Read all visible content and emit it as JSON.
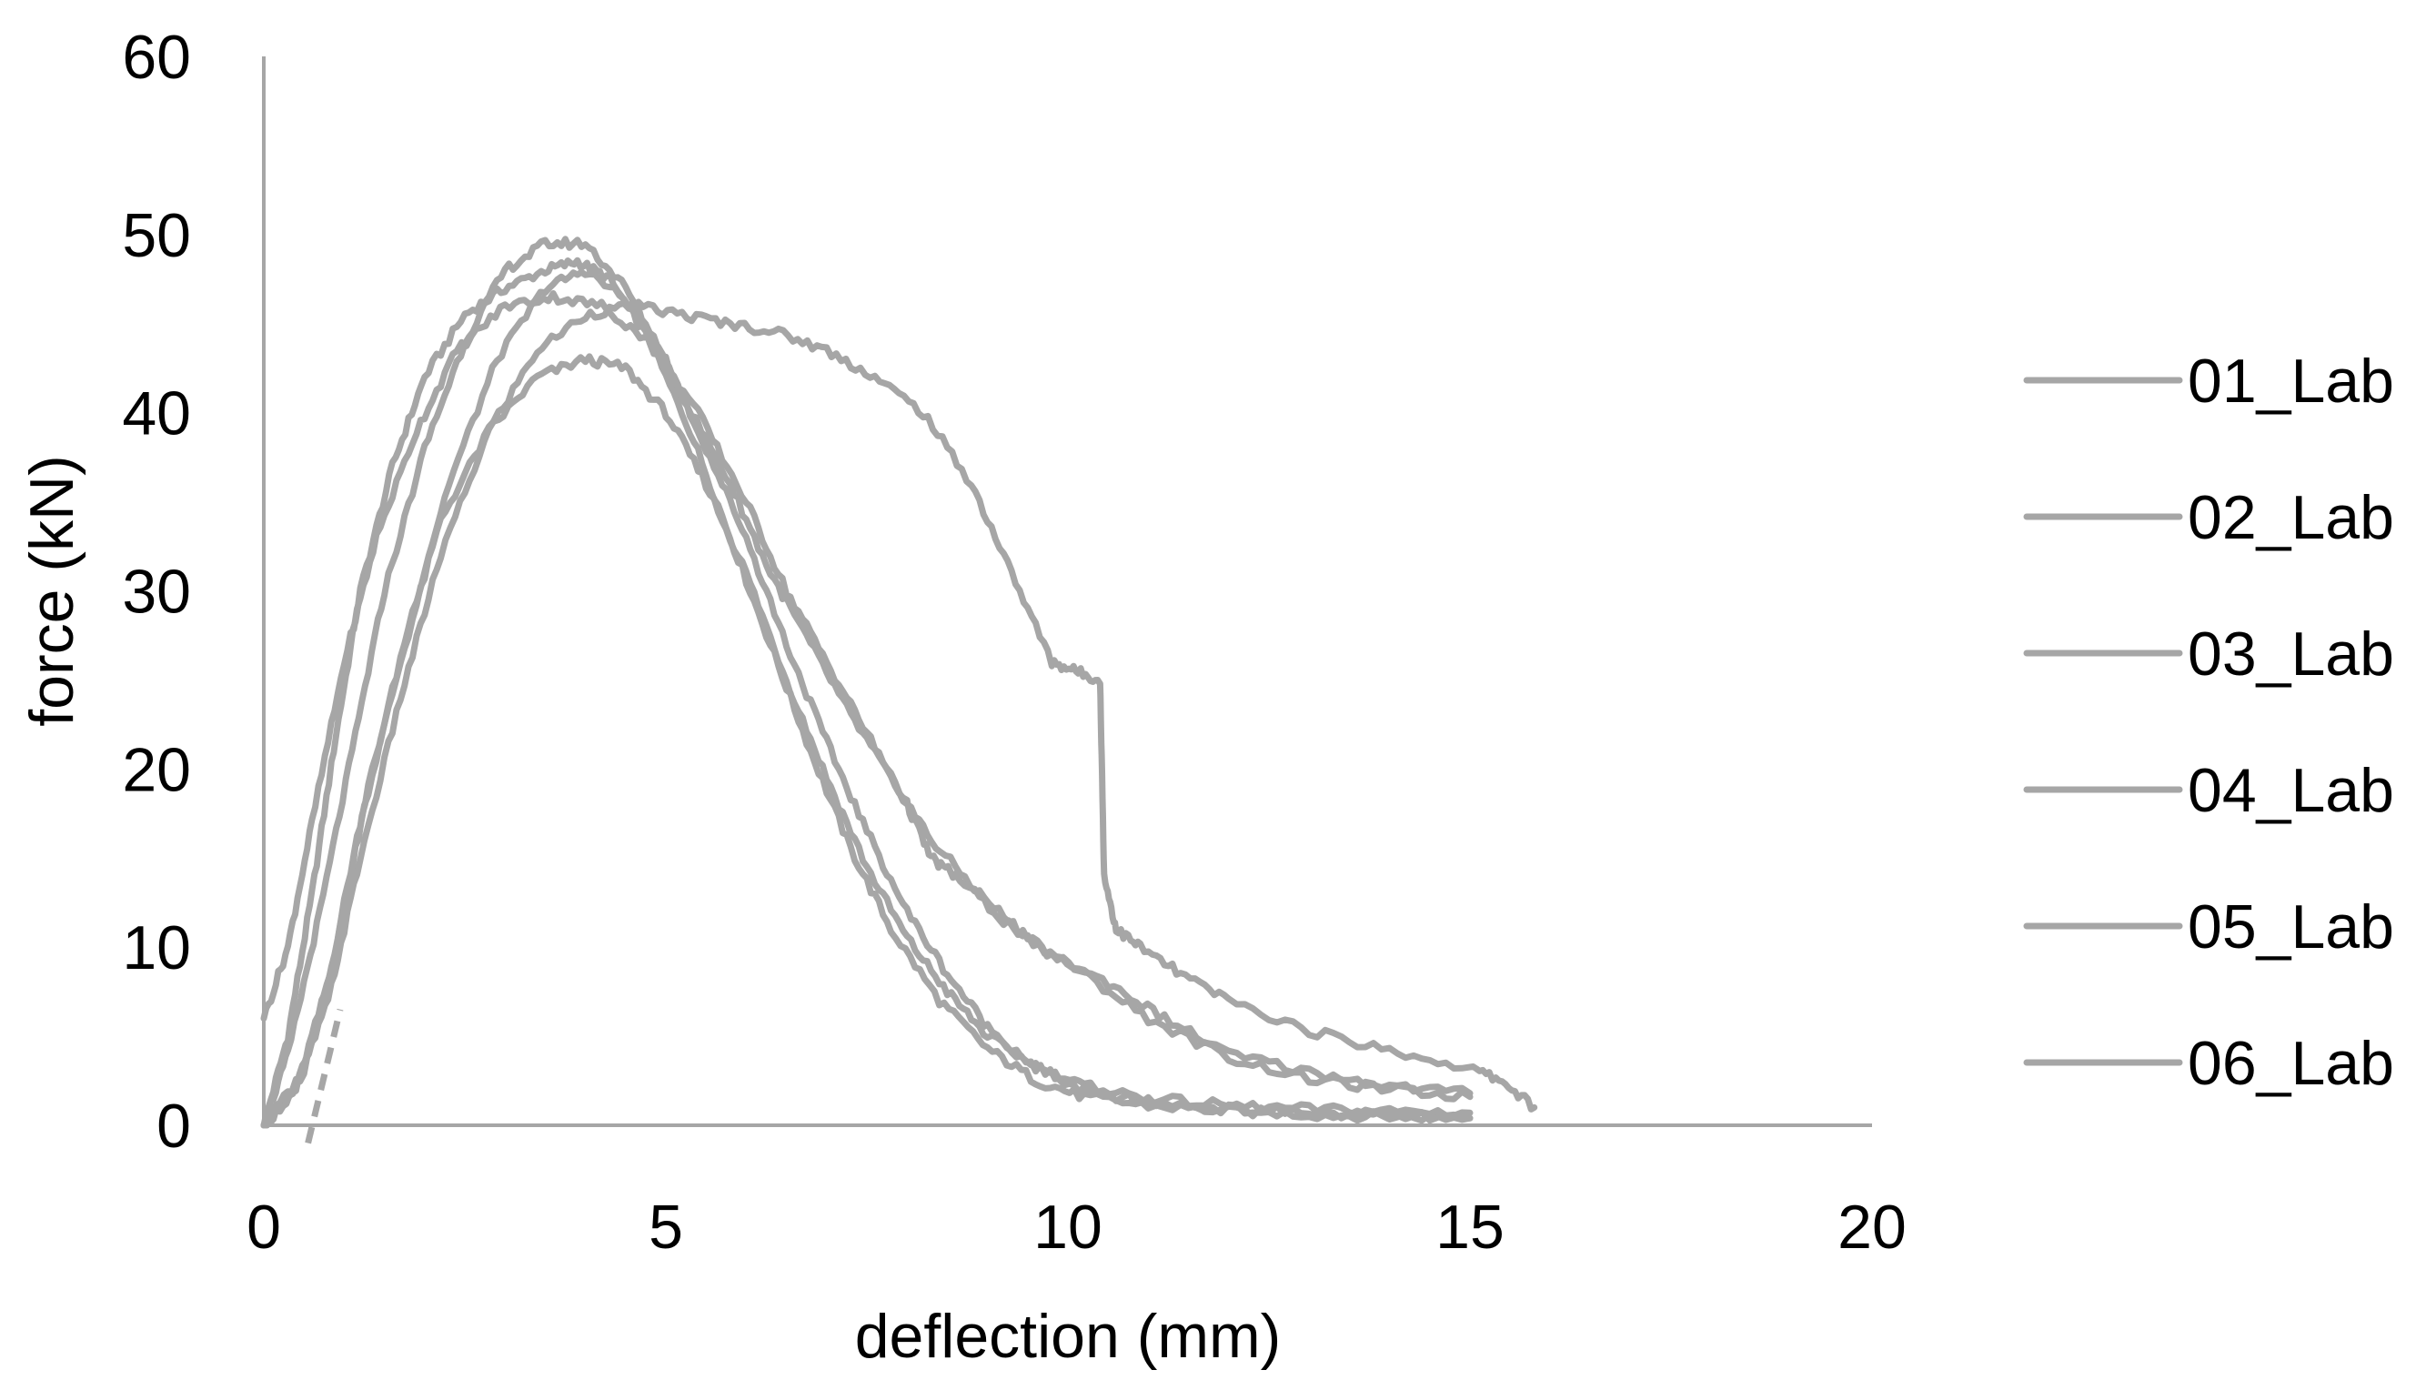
{
  "chart_data": {
    "type": "line",
    "title": "",
    "xlabel": "deflection (mm)",
    "ylabel": "force (kN)",
    "xlim": [
      0,
      20
    ],
    "ylim": [
      0,
      60
    ],
    "x_ticks": [
      "0",
      "5",
      "10",
      "15",
      "20"
    ],
    "y_ticks": [
      "0",
      "10",
      "20",
      "30",
      "40",
      "50",
      "60"
    ],
    "grid": false,
    "legend_position": "right",
    "line_color": "#a6a6a6",
    "series": [
      {
        "name": "01_Lab",
        "x": [
          0,
          0.3,
          0.6,
          0.9,
          1.2,
          1.6,
          2.0,
          2.5,
          3.0,
          3.5,
          3.9,
          4.3,
          4.8,
          5.3,
          5.8,
          6.3,
          6.8,
          7.3,
          7.8,
          8.4,
          9.0,
          9.6,
          10.2,
          11.0,
          12.0,
          13.0,
          14.0,
          15.0
        ],
        "y": [
          0,
          5,
          13,
          22,
          30,
          37,
          42,
          45.5,
          47,
          48,
          48.5,
          47.5,
          44,
          39,
          33,
          27,
          21,
          15.5,
          11,
          7,
          4.3,
          2.5,
          1.6,
          1.1,
          0.8,
          0.6,
          0.5,
          0.4
        ]
      },
      {
        "name": "02_Lab",
        "x": [
          0,
          0.4,
          0.8,
          1.2,
          1.7,
          2.2,
          2.8,
          3.4,
          4.0,
          4.5,
          5.0,
          5.5,
          6.0,
          6.5,
          7.0,
          7.5,
          8.0,
          8.5,
          9.0,
          9.6,
          10.2,
          11.0,
          12.0,
          13.0,
          14.0,
          15.0
        ],
        "y": [
          0,
          2,
          8,
          17,
          26,
          34,
          39,
          42,
          43,
          42.5,
          40,
          36,
          31,
          25,
          19.5,
          14.5,
          10.5,
          7.5,
          5,
          3.3,
          2.2,
          1.5,
          1.1,
          0.9,
          0.8,
          0.7
        ]
      },
      {
        "name": "03_Lab",
        "x": [
          0,
          0.5,
          0.9,
          1.3,
          1.8,
          2.3,
          2.9,
          3.5,
          4.0,
          4.6,
          5.2,
          5.8,
          6.3,
          6.8,
          7.3,
          7.8,
          8.3,
          8.9,
          9.5,
          10.2,
          11.0,
          12.0,
          13.0,
          14.0,
          15.0
        ],
        "y": [
          0,
          3,
          10,
          19,
          28,
          36,
          43,
          47,
          48,
          46,
          41,
          36,
          31,
          27,
          23,
          19.5,
          16,
          13,
          10.5,
          8.5,
          6,
          3.8,
          2.6,
          2,
          1.6
        ]
      },
      {
        "name": "04_Lab",
        "x": [
          0,
          0.3,
          0.6,
          1.0,
          1.4,
          1.9,
          2.4,
          3.0,
          3.6,
          4.2,
          4.8,
          5.4,
          6.0,
          6.5,
          7.0,
          7.5,
          8.0,
          8.3,
          8.6,
          9.2,
          9.8,
          10.5,
          11.2,
          12.0,
          13.0,
          14.0,
          15.0
        ],
        "y": [
          6,
          10,
          17,
          26,
          33,
          39,
          43.5,
          46,
          46.5,
          46,
          44,
          40,
          35,
          30,
          26,
          22,
          18,
          15,
          14,
          11.5,
          9.5,
          8,
          6,
          4,
          3,
          2.2,
          1.8
        ]
      },
      {
        "name": "05_Lab",
        "x": [
          0,
          0.3,
          0.7,
          1.1,
          1.5,
          2.0,
          2.5,
          3.0,
          3.5,
          4.0,
          4.5,
          5.0,
          5.5,
          6.0,
          6.5,
          7.0,
          7.5,
          8.0,
          8.5,
          9.0,
          9.6,
          10.2,
          11.0,
          12.0,
          13.0,
          14.0,
          15.0
        ],
        "y": [
          0,
          4,
          12,
          21,
          30,
          38,
          44,
          48,
          49.5,
          49.5,
          47,
          43,
          38,
          33,
          27,
          21.5,
          16.5,
          12,
          8.5,
          5.5,
          3.3,
          1.9,
          1.3,
          0.9,
          0.7,
          0.5,
          0.4
        ]
      },
      {
        "name": "06_Lab",
        "x": [
          0,
          0.4,
          0.8,
          1.2,
          1.7,
          2.2,
          2.8,
          3.4,
          4.0,
          4.6,
          5.2,
          5.8,
          6.4,
          7.0,
          7.6,
          8.2,
          8.8,
          9.3,
          9.8,
          10.1,
          10.4,
          10.45,
          10.6,
          10.9,
          11.4,
          12.0,
          13.0,
          14.0,
          15.0,
          15.4,
          15.8
        ],
        "y": [
          0,
          2,
          7,
          15,
          24,
          32,
          39,
          43.5,
          45.5,
          46,
          45.5,
          45,
          44.5,
          43.5,
          42,
          40,
          36,
          31,
          26,
          25.5,
          25,
          14,
          11,
          10,
          8.5,
          7,
          5.3,
          4.2,
          3.2,
          2.5,
          1
        ]
      }
    ]
  }
}
